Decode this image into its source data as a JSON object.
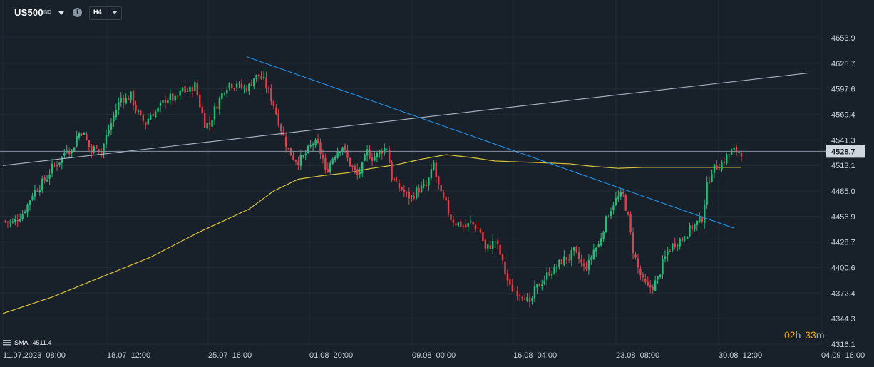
{
  "header": {
    "symbol": "US500",
    "symbol_tag": "IND",
    "timeframe": "H4"
  },
  "legend": {
    "indicator": "SMA",
    "value": "4511.4"
  },
  "countdown": {
    "hours": "02",
    "hours_unit": "h",
    "minutes": "33",
    "minutes_unit": "m"
  },
  "colors": {
    "background": "#18202a",
    "bull": "#1fbf75",
    "bear": "#e0404a",
    "sma": "#d9c13b",
    "trendline_blue": "#1e90e8",
    "trendline_grey": "#a9b8c8",
    "price_line": "#8593a3",
    "countdown": "#f0a015"
  },
  "icons": {
    "symbol_dropdown": "chevron-down-icon",
    "info": "info-icon",
    "timeframe_dropdown": "chevron-down-icon",
    "indicator": "indicator-icon"
  },
  "chart_data": {
    "type": "candlestick",
    "instrument": "US500",
    "timeframe": "H4",
    "y_ticks": [
      "4653.9",
      "4625.7",
      "4597.6",
      "4569.4",
      "4541.3",
      "4513.1",
      "4485.0",
      "4456.9",
      "4428.7",
      "4400.6",
      "4372.4",
      "4344.3",
      "4316.1"
    ],
    "ylim": [
      4316.1,
      4653.9
    ],
    "current_price": "4528.7",
    "x_ticks": [
      "11.07.2023  08:00",
      "18.07  12:00",
      "25.07  16:00",
      "01.08  20:00",
      "09.08  00:00",
      "16.08  04:00",
      "23.08  08:00",
      "30.08  12:00",
      "04.09  16:00"
    ],
    "grid": true,
    "close_path": [
      [
        0,
        4452
      ],
      [
        4,
        4450
      ],
      [
        8,
        4460
      ],
      [
        10,
        4470
      ],
      [
        12,
        4482
      ],
      [
        14,
        4488
      ],
      [
        18,
        4500
      ],
      [
        20,
        4511
      ],
      [
        22,
        4515
      ],
      [
        24,
        4522
      ],
      [
        26,
        4533
      ],
      [
        28,
        4528
      ],
      [
        30,
        4545
      ],
      [
        32,
        4552
      ],
      [
        34,
        4540
      ],
      [
        36,
        4528
      ],
      [
        38,
        4536
      ],
      [
        40,
        4528
      ],
      [
        42,
        4545
      ],
      [
        44,
        4560
      ],
      [
        46,
        4575
      ],
      [
        48,
        4588
      ],
      [
        50,
        4586
      ],
      [
        52,
        4590
      ],
      [
        53,
        4582
      ],
      [
        54,
        4575
      ],
      [
        56,
        4565
      ],
      [
        58,
        4560
      ],
      [
        60,
        4570
      ],
      [
        62,
        4572
      ],
      [
        63,
        4575
      ],
      [
        64,
        4578
      ],
      [
        66,
        4586
      ],
      [
        68,
        4588
      ],
      [
        70,
        4585
      ],
      [
        72,
        4592
      ],
      [
        73,
        4598
      ],
      [
        74,
        4595
      ],
      [
        76,
        4596
      ],
      [
        77,
        4600
      ],
      [
        78,
        4602
      ],
      [
        80,
        4580
      ],
      [
        82,
        4560
      ],
      [
        84,
        4558
      ],
      [
        86,
        4575
      ],
      [
        88,
        4586
      ],
      [
        90,
        4598
      ],
      [
        92,
        4604
      ],
      [
        94,
        4602
      ],
      [
        95,
        4605
      ],
      [
        96,
        4600
      ],
      [
        98,
        4598
      ],
      [
        100,
        4600
      ],
      [
        102,
        4610
      ],
      [
        104,
        4612
      ],
      [
        106,
        4606
      ],
      [
        108,
        4594
      ],
      [
        110,
        4580
      ],
      [
        112,
        4562
      ],
      [
        114,
        4545
      ],
      [
        116,
        4530
      ],
      [
        118,
        4522
      ],
      [
        120,
        4518
      ],
      [
        122,
        4522
      ],
      [
        124,
        4530
      ],
      [
        126,
        4538
      ],
      [
        128,
        4535
      ],
      [
        130,
        4520
      ],
      [
        131,
        4505
      ],
      [
        132,
        4510
      ],
      [
        134,
        4522
      ],
      [
        136,
        4530
      ],
      [
        138,
        4535
      ],
      [
        140,
        4520
      ],
      [
        142,
        4510
      ],
      [
        144,
        4502
      ],
      [
        146,
        4512
      ],
      [
        148,
        4528
      ],
      [
        150,
        4522
      ],
      [
        152,
        4525
      ],
      [
        154,
        4530
      ],
      [
        156,
        4533
      ],
      [
        158,
        4500
      ],
      [
        160,
        4490
      ],
      [
        162,
        4487
      ],
      [
        164,
        4480
      ],
      [
        166,
        4478
      ],
      [
        168,
        4485
      ],
      [
        170,
        4488
      ],
      [
        172,
        4490
      ],
      [
        174,
        4505
      ],
      [
        175,
        4515
      ],
      [
        176,
        4500
      ],
      [
        178,
        4480
      ],
      [
        180,
        4470
      ],
      [
        182,
        4455
      ],
      [
        184,
        4450
      ],
      [
        186,
        4448
      ],
      [
        188,
        4445
      ],
      [
        190,
        4450
      ],
      [
        192,
        4445
      ],
      [
        194,
        4440
      ],
      [
        196,
        4420
      ],
      [
        198,
        4425
      ],
      [
        200,
        4430
      ],
      [
        202,
        4415
      ],
      [
        204,
        4395
      ],
      [
        206,
        4378
      ],
      [
        208,
        4375
      ],
      [
        210,
        4372
      ],
      [
        212,
        4370
      ],
      [
        214,
        4358
      ],
      [
        216,
        4375
      ],
      [
        218,
        4382
      ],
      [
        220,
        4388
      ],
      [
        222,
        4396
      ],
      [
        224,
        4398
      ],
      [
        226,
        4405
      ],
      [
        228,
        4410
      ],
      [
        230,
        4412
      ],
      [
        232,
        4418
      ],
      [
        234,
        4410
      ],
      [
        236,
        4400
      ],
      [
        238,
        4405
      ],
      [
        240,
        4420
      ],
      [
        242,
        4425
      ],
      [
        244,
        4445
      ],
      [
        246,
        4460
      ],
      [
        248,
        4472
      ],
      [
        250,
        4478
      ],
      [
        252,
        4480
      ],
      [
        254,
        4455
      ],
      [
        256,
        4420
      ],
      [
        258,
        4400
      ],
      [
        260,
        4385
      ],
      [
        262,
        4378
      ],
      [
        264,
        4380
      ],
      [
        266,
        4388
      ],
      [
        268,
        4405
      ],
      [
        270,
        4418
      ],
      [
        272,
        4425
      ],
      [
        274,
        4430
      ],
      [
        276,
        4432
      ],
      [
        278,
        4440
      ],
      [
        280,
        4445
      ],
      [
        282,
        4450
      ],
      [
        284,
        4455
      ],
      [
        286,
        4490
      ],
      [
        288,
        4508
      ],
      [
        290,
        4512
      ],
      [
        292,
        4515
      ],
      [
        294,
        4523
      ],
      [
        296,
        4528
      ],
      [
        298,
        4530
      ],
      [
        300,
        4528
      ]
    ],
    "sma_label": "SMA 4511.4",
    "sma_path": [
      [
        0,
        4350
      ],
      [
        20,
        4368
      ],
      [
        40,
        4390
      ],
      [
        60,
        4412
      ],
      [
        80,
        4440
      ],
      [
        100,
        4465
      ],
      [
        110,
        4485
      ],
      [
        120,
        4498
      ],
      [
        130,
        4502
      ],
      [
        140,
        4505
      ],
      [
        150,
        4510
      ],
      [
        160,
        4514
      ],
      [
        170,
        4520
      ],
      [
        180,
        4525
      ],
      [
        190,
        4522
      ],
      [
        200,
        4518
      ],
      [
        210,
        4517
      ],
      [
        220,
        4516
      ],
      [
        230,
        4515
      ],
      [
        240,
        4512
      ],
      [
        250,
        4510
      ],
      [
        260,
        4511
      ],
      [
        270,
        4511
      ],
      [
        280,
        4511
      ],
      [
        290,
        4511
      ],
      [
        300,
        4511
      ]
    ],
    "trendlines": [
      {
        "name": "descending",
        "from": [
          99,
          4633
        ],
        "to": [
          297,
          4444
        ]
      },
      {
        "name": "ascending",
        "from": [
          0,
          4513
        ],
        "to": [
          327,
          4615
        ]
      }
    ]
  }
}
